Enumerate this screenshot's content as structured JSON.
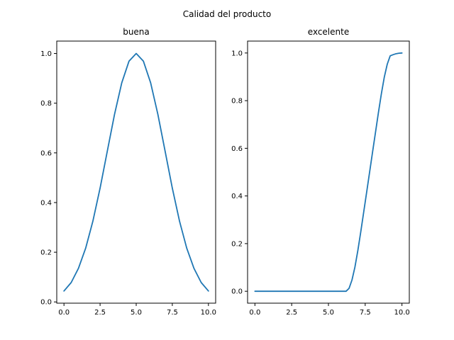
{
  "figure": {
    "suptitle": "Calidad del producto"
  },
  "chart_data": [
    {
      "type": "line",
      "title": "buena",
      "xlabel": "",
      "ylabel": "",
      "xlim": [
        -0.5,
        10.5
      ],
      "ylim": [
        -0.005,
        1.05
      ],
      "xticks": [
        0.0,
        2.5,
        5.0,
        7.5,
        10.0
      ],
      "xtick_labels": [
        "0.0",
        "2.5",
        "5.0",
        "7.5",
        "10.0"
      ],
      "yticks": [
        0.0,
        0.2,
        0.4,
        0.6,
        0.8,
        1.0
      ],
      "ytick_labels": [
        "0.0",
        "0.2",
        "0.4",
        "0.6",
        "0.8",
        "1.0"
      ],
      "grid": false,
      "series": [
        {
          "color": "#1f77b4",
          "x": [
            0.0,
            0.5,
            1.0,
            1.5,
            2.0,
            2.5,
            3.0,
            3.5,
            4.0,
            4.5,
            5.0,
            5.5,
            6.0,
            6.5,
            7.0,
            7.5,
            8.0,
            8.5,
            9.0,
            9.5,
            10.0
          ],
          "y": [
            0.044,
            0.078,
            0.135,
            0.216,
            0.325,
            0.458,
            0.607,
            0.755,
            0.882,
            0.969,
            1.0,
            0.969,
            0.882,
            0.755,
            0.607,
            0.458,
            0.325,
            0.216,
            0.135,
            0.078,
            0.044
          ]
        }
      ]
    },
    {
      "type": "line",
      "title": "excelente",
      "xlabel": "",
      "ylabel": "",
      "xlim": [
        -0.5,
        10.5
      ],
      "ylim": [
        -0.05,
        1.05
      ],
      "xticks": [
        0.0,
        2.5,
        5.0,
        7.5,
        10.0
      ],
      "xtick_labels": [
        "0.0",
        "2.5",
        "5.0",
        "7.5",
        "10.0"
      ],
      "yticks": [
        0.0,
        0.2,
        0.4,
        0.6,
        0.8,
        1.0
      ],
      "ytick_labels": [
        "0.0",
        "0.2",
        "0.4",
        "0.6",
        "0.8",
        "1.0"
      ],
      "grid": false,
      "series": [
        {
          "color": "#1f77b4",
          "x": [
            0.0,
            1.0,
            2.0,
            3.0,
            4.0,
            5.0,
            5.5,
            6.0,
            6.2,
            6.4,
            6.6,
            6.8,
            7.0,
            7.2,
            7.4,
            7.6,
            7.8,
            8.0,
            8.2,
            8.4,
            8.6,
            8.8,
            9.0,
            9.2,
            9.4,
            9.6,
            9.8,
            10.0
          ],
          "y": [
            0.0,
            0.0,
            0.0,
            0.0,
            0.0,
            0.0,
            0.0,
            0.0,
            0.0,
            0.012,
            0.047,
            0.101,
            0.171,
            0.25,
            0.333,
            0.416,
            0.5,
            0.584,
            0.667,
            0.75,
            0.829,
            0.899,
            0.953,
            0.988,
            0.993,
            0.997,
            0.999,
            1.0
          ]
        }
      ]
    }
  ]
}
